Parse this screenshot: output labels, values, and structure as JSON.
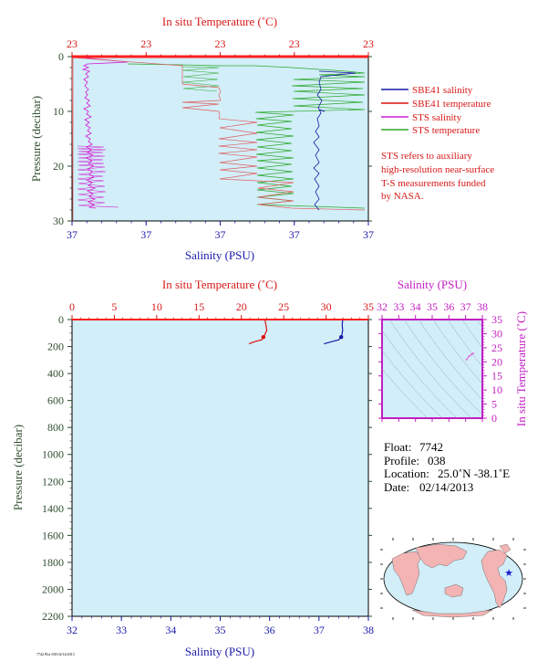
{
  "chart_data": [
    {
      "type": "line",
      "panel": "upper",
      "title": "In situ Temperature (˚C)",
      "x_top_label": "In situ Temperature (˚C)",
      "x_top_ticks": [
        "23",
        "23",
        "23",
        "23",
        "23"
      ],
      "x_bottom_label": "Salinity (PSU)",
      "x_bottom_ticks": [
        "37",
        "37",
        "37",
        "37",
        "37"
      ],
      "ylabel": "Pressure (decibar)",
      "y_ticks": [
        0,
        10,
        20,
        30
      ],
      "ylim": [
        0,
        30
      ],
      "legend_placement": "right",
      "series": [
        {
          "name": "SBE41 salinity",
          "color": "#1a1aa8"
        },
        {
          "name": "SBE41 temperature",
          "color": "#e01010"
        },
        {
          "name": "STS salinity",
          "color": "#d21cd2"
        },
        {
          "name": "STS temperature",
          "color": "#2ca82c"
        }
      ],
      "note": [
        "STS refers to auxiliary",
        "high-resolution near-surface",
        "T-S measurements funded",
        "by NASA."
      ]
    },
    {
      "type": "line",
      "panel": "lower",
      "x_top_label": "In situ Temperature (˚C)",
      "x_top_ticks": [
        0,
        5,
        10,
        15,
        20,
        25,
        30,
        35
      ],
      "xlim_temperature": [
        0,
        35
      ],
      "x_bottom_label": "Salinity (PSU)",
      "x_bottom_ticks": [
        32,
        33,
        34,
        35,
        36,
        37,
        38
      ],
      "xlim_salinity": [
        32,
        38
      ],
      "ylabel": "Pressure (decibar)",
      "y_ticks": [
        0,
        200,
        400,
        600,
        800,
        1000,
        1200,
        1400,
        1600,
        1800,
        2000,
        2200
      ],
      "ylim": [
        0,
        2200
      ],
      "series": [
        {
          "variable": "temperature",
          "color": "#e01010",
          "points": [
            [
              22.8,
              5
            ],
            [
              22.9,
              40
            ],
            [
              23.0,
              80
            ],
            [
              22.7,
              120
            ],
            [
              22.4,
              150
            ],
            [
              21.8,
              160
            ],
            [
              21.3,
              170
            ],
            [
              20.9,
              180
            ]
          ],
          "marker_point": [
            22.6,
            130
          ]
        },
        {
          "variable": "salinity",
          "color": "#1a1aa8",
          "points": [
            [
              37.48,
              5
            ],
            [
              37.47,
              40
            ],
            [
              37.48,
              80
            ],
            [
              37.46,
              120
            ],
            [
              37.4,
              150
            ],
            [
              37.3,
              160
            ],
            [
              37.2,
              170
            ],
            [
              37.1,
              180
            ]
          ],
          "marker_point": [
            37.45,
            130
          ]
        }
      ]
    },
    {
      "type": "scatter",
      "panel": "ts-diagram",
      "x_top_label": "Salinity (PSU)",
      "x_ticks": [
        32,
        33,
        34,
        35,
        36,
        37,
        38
      ],
      "xlim": [
        32,
        38
      ],
      "y_label_right": "In situ Temperature (˚C)",
      "y_ticks": [
        0,
        5,
        10,
        15,
        20,
        25,
        30,
        35
      ],
      "ylim": [
        0,
        35
      ],
      "points": [
        [
          37.05,
          20.8
        ],
        [
          37.2,
          22.0
        ],
        [
          37.35,
          22.6
        ],
        [
          37.45,
          23.0
        ]
      ],
      "point_color": "#e060e0"
    }
  ],
  "float_info": {
    "float_label": "Float:",
    "float_value": "7742",
    "profile_label": "Profile:",
    "profile_value": "038",
    "location_label": "Location:",
    "location_value": "25.0˚N  -38.1˚E",
    "date_label": "Date:",
    "date_value": "02/14/2013"
  },
  "map": {
    "marker_lat": 25.0,
    "marker_lon": -38.1,
    "marker_color": "#1a1ad0"
  },
  "footer_text": "7742 Plot 038 02/14/2013",
  "colors": {
    "plot_bg": "#d2eef8",
    "axis_red": "#d81818",
    "axis_blue": "#1a1aa8",
    "axis_green": "#2e4e2e",
    "axis_magenta": "#c21ec2"
  }
}
